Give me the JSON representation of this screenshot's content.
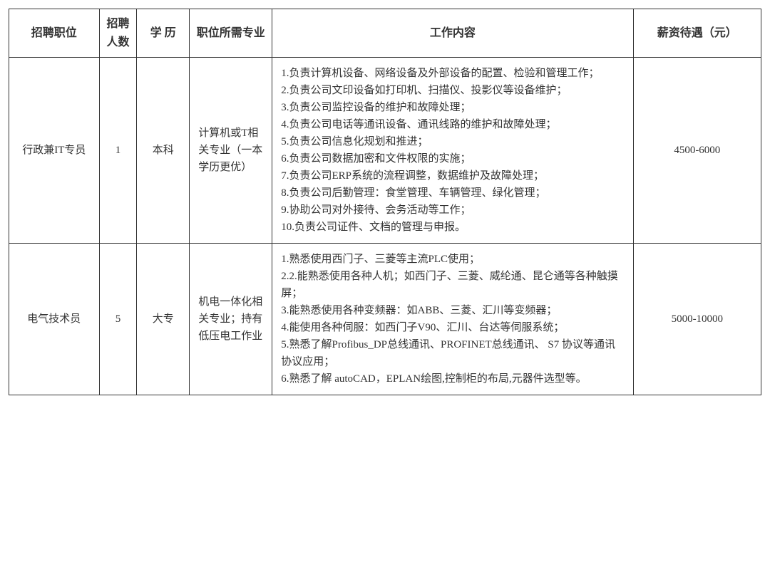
{
  "table": {
    "border_color": "#333333",
    "background_color": "#ffffff",
    "text_color": "#333333",
    "header_fontsize": 16,
    "body_fontsize": 15,
    "columns": [
      {
        "key": "position",
        "label": "招聘职位",
        "width_pct": 12,
        "align": "center"
      },
      {
        "key": "headcount",
        "label": "招聘人数",
        "width_pct": 5,
        "align": "center"
      },
      {
        "key": "education",
        "label": "学  历",
        "width_pct": 7,
        "align": "center"
      },
      {
        "key": "major",
        "label": "职位所需专业",
        "width_pct": 11,
        "align": "left"
      },
      {
        "key": "content",
        "label": "工作内容",
        "width_pct": 48,
        "align": "left"
      },
      {
        "key": "salary",
        "label": "薪资待遇（元）",
        "width_pct": 17,
        "align": "center"
      }
    ],
    "rows": [
      {
        "position": "行政兼IT专员",
        "headcount": "1",
        "education": "本科",
        "major": "计算机或T相关专业（一本学历更优）",
        "content": "1.负责计算机设备、网络设备及外部设备的配置、检验和管理工作；\n2.负责公司文印设备如打印机、扫描仪、投影仪等设备维护；\n3.负责公司监控设备的维护和故障处理；\n4.负责公司电话等通讯设备、通讯线路的维护和故障处理；\n5.负责公司信息化规划和推进；\n6.负责公司数据加密和文件权限的实施；\n7.负责公司ERP系统的流程调整，数据维护及故障处理；\n8.负责公司后勤管理：食堂管理、车辆管理、绿化管理；\n9.协助公司对外接待、会务活动等工作；\n10.负责公司证件、文档的管理与申报。",
        "salary": "4500-6000"
      },
      {
        "position": "电气技术员",
        "headcount": "5",
        "education": "大专",
        "major": "机电一体化相关专业；持有低压电工作业",
        "content": "1.熟悉使用西门子、三菱等主流PLC使用；\n2.2.能熟悉使用各种人机；如西门子、三菱、威纶通、昆仑通等各种触摸屏；\n3.能熟悉使用各种变频器：如ABB、三菱、汇川等变频器；\n4.能使用各种伺服：如西门子V90、汇川、台达等伺服系统；\n5.熟悉了解Profibus_DP总线通讯、PROFINET总线通讯、 S7 协议等通讯协议应用；\n6.熟悉了解 autoCAD，EPLAN绘图,控制柜的布局,元器件选型等。",
        "salary": "5000-10000"
      }
    ]
  }
}
